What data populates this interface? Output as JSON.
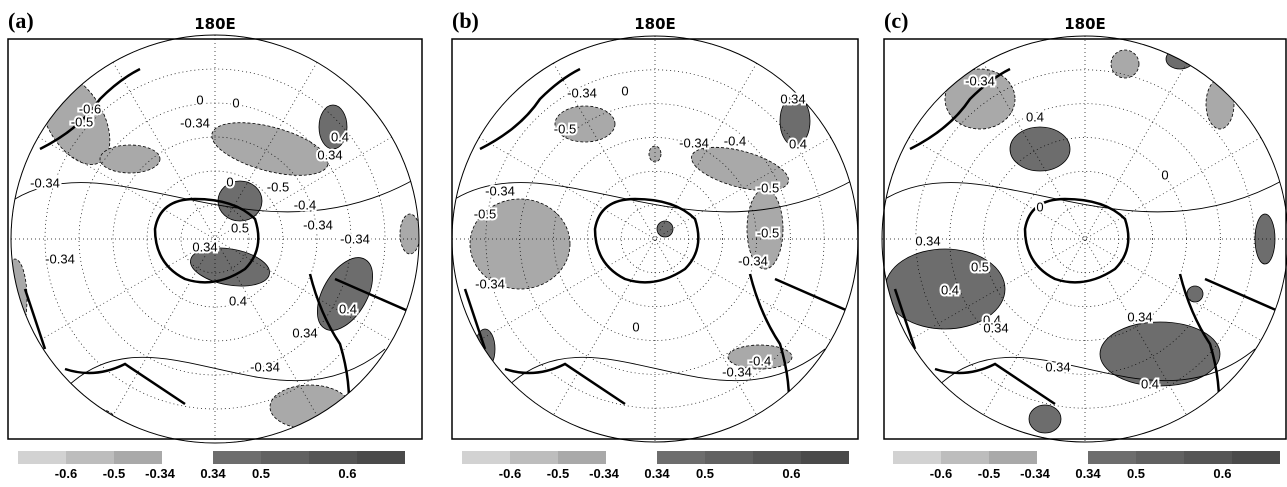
{
  "panels": [
    {
      "label": "(a)",
      "title": "180E",
      "contour_labels": [
        -0.6,
        -0.5,
        0,
        0,
        -0.34,
        0.4,
        0.34,
        -0.34,
        0,
        -0.5,
        -0.4,
        -0.34,
        -0.34,
        0.5,
        0.34,
        -0.34,
        0.4,
        0.4,
        0.34,
        -0.34
      ]
    },
    {
      "label": "(b)",
      "title": "180E",
      "contour_labels": [
        -0.34,
        0,
        0.34,
        -0.5,
        0.4,
        -0.34,
        -0.4,
        -0.34,
        -0.5,
        -0.5,
        -0.5,
        -0.34,
        -0.34,
        0,
        -0.4,
        -0.34
      ]
    },
    {
      "label": "(c)",
      "title": "180E",
      "contour_labels": [
        -0.34,
        0.4,
        0.34,
        0.5,
        0.4,
        0.4,
        0.34,
        0.34,
        0.34,
        0.4,
        0,
        0
      ]
    }
  ],
  "colorbar": {
    "labels": [
      -0.6,
      -0.5,
      -0.34,
      0.34,
      0.5,
      0.6
    ]
  }
}
